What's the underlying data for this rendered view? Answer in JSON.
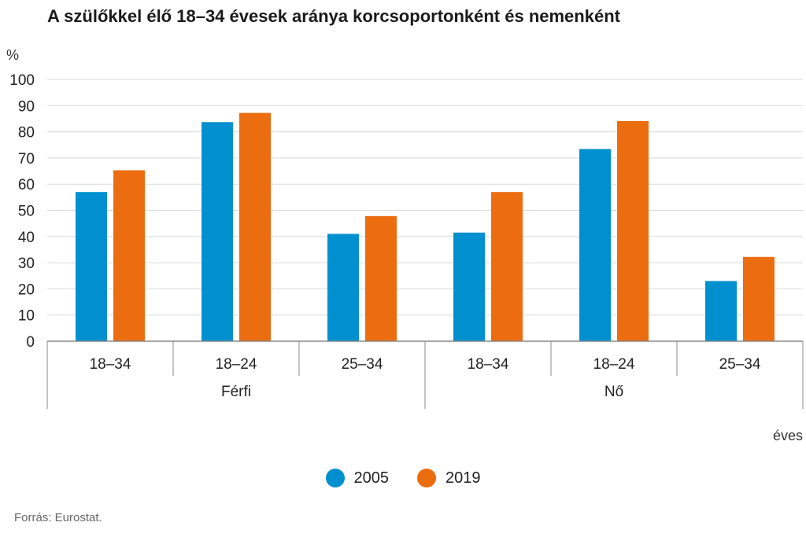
{
  "colors": {
    "s2005": "#0090d0",
    "s2019": "#ec6c10",
    "grid": "#d9d9d9",
    "axis": "#888888"
  },
  "title": "A szülőkkel élő 18–34 évesek aránya korcsoportonként és nemenként",
  "source": "Forrás: Eurostat.",
  "chart_data": {
    "type": "bar",
    "title": "A szülőkkel élő 18–34 évesek aránya korcsoportonként és nemenként",
    "ylabel": "%",
    "xlabel": "éves",
    "ylim": [
      0,
      100
    ],
    "yticks": [
      0,
      10,
      20,
      30,
      40,
      50,
      60,
      70,
      80,
      90,
      100
    ],
    "grid": true,
    "legend_position": "bottom-center",
    "groups": [
      {
        "name": "Férfi",
        "categories": [
          "18–34",
          "18–24",
          "25–34"
        ]
      },
      {
        "name": "Nő",
        "categories": [
          "18–34",
          "18–24",
          "25–34"
        ]
      }
    ],
    "categories": [
      "18–34",
      "18–24",
      "25–34",
      "18–34",
      "18–24",
      "25–34"
    ],
    "series": [
      {
        "name": "2005",
        "values": [
          57.0,
          83.7,
          41.0,
          41.5,
          73.4,
          23.0
        ]
      },
      {
        "name": "2019",
        "values": [
          65.3,
          87.2,
          47.8,
          57.0,
          84.1,
          32.2
        ]
      }
    ]
  }
}
